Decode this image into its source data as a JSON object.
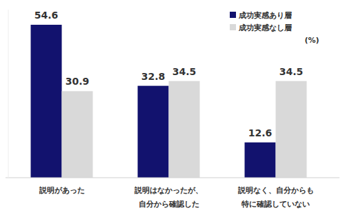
{
  "chart_data": {
    "type": "bar",
    "categories": [
      "説明があった",
      "説明はなかったが、\n自分から確認した",
      "説明なく、自分からも\n特に確認していない"
    ],
    "series": [
      {
        "name": "成功実感あり層",
        "color": "#12126e",
        "values": [
          54.6,
          32.8,
          12.6
        ]
      },
      {
        "name": "成功実感なし層",
        "color": "#d9d9d9",
        "values": [
          30.9,
          34.5,
          34.5
        ]
      }
    ],
    "y_label": "(%)",
    "ylim": [
      0,
      60
    ],
    "tick_labels": "x",
    "data_labels": true,
    "legend": "top-right",
    "grid": false
  }
}
